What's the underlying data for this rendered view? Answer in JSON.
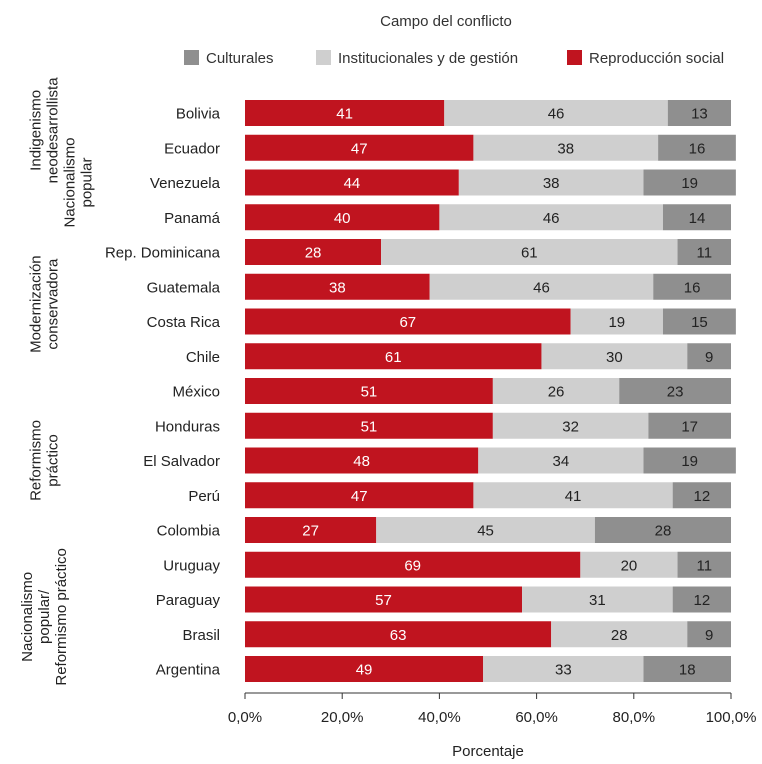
{
  "chart_data": {
    "type": "bar",
    "orientation": "horizontal",
    "stacked": true,
    "legend_title": "Campo del conflicto",
    "legend_position": "top",
    "xlabel": "Porcentaje",
    "xlim": [
      0,
      100
    ],
    "x_ticks": [
      "0,0%",
      "20,0%",
      "40,0%",
      "60,0%",
      "80,0%",
      "100,0%"
    ],
    "categories": [
      "Bolivia",
      "Ecuador",
      "Venezuela",
      "Panamá",
      "Rep. Dominicana",
      "Guatemala",
      "Costa Rica",
      "Chile",
      "México",
      "Honduras",
      "El Salvador",
      "Perú",
      "Colombia",
      "Uruguay",
      "Paraguay",
      "Brasil",
      "Argentina"
    ],
    "series": [
      {
        "name": "Reproducción social",
        "color": "#c0141f",
        "text_color": "#ffffff",
        "values": [
          41,
          47,
          44,
          40,
          28,
          38,
          67,
          61,
          51,
          51,
          48,
          47,
          27,
          69,
          57,
          63,
          49
        ]
      },
      {
        "name": "Institucionales y de gestión",
        "color": "#cfcfcf",
        "text_color": "#222222",
        "values": [
          46,
          38,
          38,
          46,
          61,
          46,
          19,
          30,
          26,
          32,
          34,
          41,
          45,
          20,
          31,
          28,
          33
        ]
      },
      {
        "name": "Culturales",
        "color": "#8f8f8f",
        "text_color": "#222222",
        "values": [
          13,
          16,
          19,
          14,
          11,
          16,
          15,
          9,
          23,
          17,
          19,
          12,
          28,
          11,
          12,
          9,
          18
        ]
      }
    ],
    "legend_order": [
      "Culturales",
      "Institucionales y de gestión",
      "Reproducción social"
    ],
    "groups": [
      {
        "lines": [
          "Indigenismo",
          "neodesarrollista"
        ],
        "from": 0,
        "to": 1
      },
      {
        "lines": [
          "Nacionalismo",
          "popular"
        ],
        "from": 1,
        "to": 3
      },
      {
        "lines": [
          "Modernización",
          "conservadora"
        ],
        "from": 4,
        "to": 7
      },
      {
        "lines": [
          "Reformismo",
          "práctico"
        ],
        "from": 8,
        "to": 12
      },
      {
        "lines": [
          "Nacionalismo",
          "popular/",
          "Reformismo práctico"
        ],
        "from": 13,
        "to": 16
      }
    ],
    "grid": false
  }
}
